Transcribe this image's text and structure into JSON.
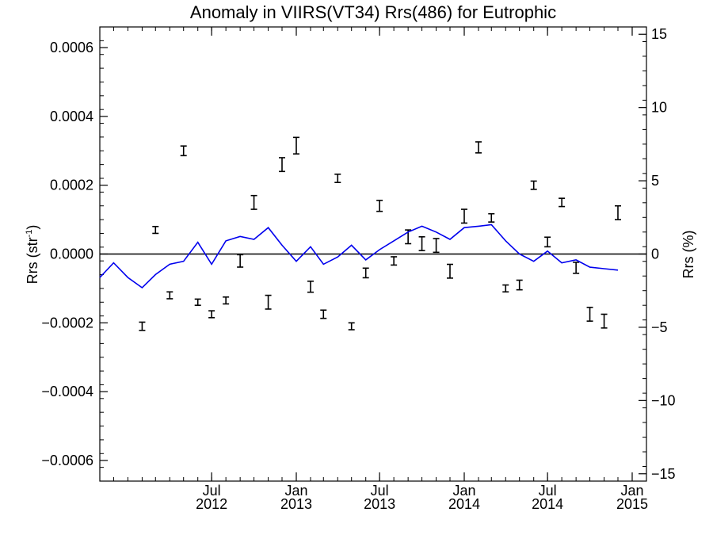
{
  "chart_data": {
    "type": "line",
    "title": "Anomaly in VIIRS(VT34) Rrs(486) for Eutrophic",
    "ylabel": "Rrs (str",
    "ylabel_sup": "-1",
    "ylabel_close": ")",
    "y2label": "Rrs (%)",
    "xlim": [
      "2011-11-01",
      "2015-02-01"
    ],
    "ylim": [
      -0.00066,
      0.00066
    ],
    "y2lim": [
      -15.5,
      15.5
    ],
    "yticks": [
      {
        "v": 0.0006,
        "label": "0.0006"
      },
      {
        "v": 0.0004,
        "label": "0.0004"
      },
      {
        "v": 0.0002,
        "label": "0.0002"
      },
      {
        "v": 0.0,
        "label": "0.0000"
      },
      {
        "v": -0.0002,
        "label": "−0.0002"
      },
      {
        "v": -0.0004,
        "label": "−0.0004"
      },
      {
        "v": -0.0006,
        "label": "−0.0006"
      }
    ],
    "y2ticks": [
      {
        "v": 15,
        "label": "15"
      },
      {
        "v": 10,
        "label": "10"
      },
      {
        "v": 5,
        "label": "5"
      },
      {
        "v": 0,
        "label": "0"
      },
      {
        "v": -5,
        "label": "−5"
      },
      {
        "v": -10,
        "label": "−10"
      },
      {
        "v": -15,
        "label": "−15"
      }
    ],
    "xticks": [
      {
        "date": "2012-07-01",
        "month": "Jul",
        "year": "2012"
      },
      {
        "date": "2013-01-01",
        "month": "Jan",
        "year": "2013"
      },
      {
        "date": "2013-07-01",
        "month": "Jul",
        "year": "2013"
      },
      {
        "date": "2014-01-01",
        "month": "Jan",
        "year": "2014"
      },
      {
        "date": "2014-07-01",
        "month": "Jul",
        "year": "2014"
      },
      {
        "date": "2015-01-01",
        "month": "Jan",
        "year": "2015"
      }
    ],
    "series": [
      {
        "kind": "errorbar",
        "axis": "left",
        "color": "#000000",
        "points": [
          {
            "x": "2012-02-01",
            "y": -0.00021,
            "err": 1.2e-05
          },
          {
            "x": "2012-03-01",
            "y": 7e-05,
            "err": 1e-05
          },
          {
            "x": "2012-04-01",
            "y": -0.00012,
            "err": 1e-05
          },
          {
            "x": "2012-05-01",
            "y": 0.0003,
            "err": 1.4e-05
          },
          {
            "x": "2012-06-01",
            "y": -0.00014,
            "err": 9e-06
          },
          {
            "x": "2012-07-01",
            "y": -0.000175,
            "err": 1e-05
          },
          {
            "x": "2012-08-01",
            "y": -0.000135,
            "err": 1e-05
          },
          {
            "x": "2012-09-01",
            "y": -2e-05,
            "err": 1.8e-05
          },
          {
            "x": "2012-10-01",
            "y": 0.00015,
            "err": 2e-05
          },
          {
            "x": "2012-11-01",
            "y": -0.00014,
            "err": 2e-05
          },
          {
            "x": "2012-12-01",
            "y": 0.00026,
            "err": 2e-05
          },
          {
            "x": "2013-01-01",
            "y": 0.000315,
            "err": 2.4e-05
          },
          {
            "x": "2013-02-01",
            "y": -9.5e-05,
            "err": 1.6e-05
          },
          {
            "x": "2013-03-01",
            "y": -0.000175,
            "err": 1.2e-05
          },
          {
            "x": "2013-04-01",
            "y": 0.00022,
            "err": 1.2e-05
          },
          {
            "x": "2013-05-01",
            "y": -0.00021,
            "err": 1e-05
          },
          {
            "x": "2013-06-01",
            "y": -5.5e-05,
            "err": 1.4e-05
          },
          {
            "x": "2013-07-01",
            "y": 0.00014,
            "err": 1.6e-05
          },
          {
            "x": "2013-08-01",
            "y": -2e-05,
            "err": 1.2e-05
          },
          {
            "x": "2013-09-01",
            "y": 5e-05,
            "err": 2e-05
          },
          {
            "x": "2013-10-01",
            "y": 3e-05,
            "err": 2e-05
          },
          {
            "x": "2013-11-01",
            "y": 2.5e-05,
            "err": 2e-05
          },
          {
            "x": "2013-12-01",
            "y": -5e-05,
            "err": 2e-05
          },
          {
            "x": "2014-01-01",
            "y": 0.00011,
            "err": 2e-05
          },
          {
            "x": "2014-02-01",
            "y": 0.00031,
            "err": 1.6e-05
          },
          {
            "x": "2014-03-01",
            "y": 0.000105,
            "err": 1.2e-05
          },
          {
            "x": "2014-04-01",
            "y": -0.0001,
            "err": 1e-05
          },
          {
            "x": "2014-05-01",
            "y": -9e-05,
            "err": 1.4e-05
          },
          {
            "x": "2014-06-01",
            "y": 0.0002,
            "err": 1.2e-05
          },
          {
            "x": "2014-07-01",
            "y": 3.5e-05,
            "err": 1.4e-05
          },
          {
            "x": "2014-08-01",
            "y": 0.00015,
            "err": 1.2e-05
          },
          {
            "x": "2014-09-01",
            "y": -4e-05,
            "err": 1.6e-05
          },
          {
            "x": "2014-10-01",
            "y": -0.000175,
            "err": 2e-05
          },
          {
            "x": "2014-11-01",
            "y": -0.000195,
            "err": 2e-05
          },
          {
            "x": "2014-12-01",
            "y": 0.00012,
            "err": 2e-05
          }
        ]
      },
      {
        "kind": "line",
        "axis": "right",
        "color": "#0000ee",
        "points": [
          {
            "x": "2011-11-01",
            "y": -1.6
          },
          {
            "x": "2011-12-01",
            "y": -0.6
          },
          {
            "x": "2012-01-01",
            "y": -1.6
          },
          {
            "x": "2012-02-01",
            "y": -2.3
          },
          {
            "x": "2012-03-01",
            "y": -1.4
          },
          {
            "x": "2012-04-01",
            "y": -0.7
          },
          {
            "x": "2012-05-01",
            "y": -0.5
          },
          {
            "x": "2012-06-01",
            "y": 0.8
          },
          {
            "x": "2012-07-01",
            "y": -0.7
          },
          {
            "x": "2012-08-01",
            "y": 0.9
          },
          {
            "x": "2012-09-01",
            "y": 1.2
          },
          {
            "x": "2012-10-01",
            "y": 1.0
          },
          {
            "x": "2012-11-01",
            "y": 1.8
          },
          {
            "x": "2012-12-01",
            "y": 0.6
          },
          {
            "x": "2013-01-01",
            "y": -0.5
          },
          {
            "x": "2013-02-01",
            "y": 0.5
          },
          {
            "x": "2013-03-01",
            "y": -0.7
          },
          {
            "x": "2013-04-01",
            "y": -0.2
          },
          {
            "x": "2013-05-01",
            "y": 0.6
          },
          {
            "x": "2013-06-01",
            "y": -0.4
          },
          {
            "x": "2013-07-01",
            "y": 0.3
          },
          {
            "x": "2013-08-01",
            "y": 0.9
          },
          {
            "x": "2013-09-01",
            "y": 1.5
          },
          {
            "x": "2013-10-01",
            "y": 1.9
          },
          {
            "x": "2013-11-01",
            "y": 1.5
          },
          {
            "x": "2013-12-01",
            "y": 1.0
          },
          {
            "x": "2014-01-01",
            "y": 1.8
          },
          {
            "x": "2014-02-01",
            "y": 1.9
          },
          {
            "x": "2014-03-01",
            "y": 2.0
          },
          {
            "x": "2014-04-01",
            "y": 0.9
          },
          {
            "x": "2014-05-01",
            "y": 0.0
          },
          {
            "x": "2014-06-01",
            "y": -0.5
          },
          {
            "x": "2014-07-01",
            "y": 0.2
          },
          {
            "x": "2014-08-01",
            "y": -0.6
          },
          {
            "x": "2014-09-01",
            "y": -0.4
          },
          {
            "x": "2014-10-01",
            "y": -0.9
          },
          {
            "x": "2014-11-01",
            "y": -1.0
          },
          {
            "x": "2014-12-01",
            "y": -1.1
          }
        ]
      }
    ],
    "zero_line": true,
    "grid": false
  }
}
